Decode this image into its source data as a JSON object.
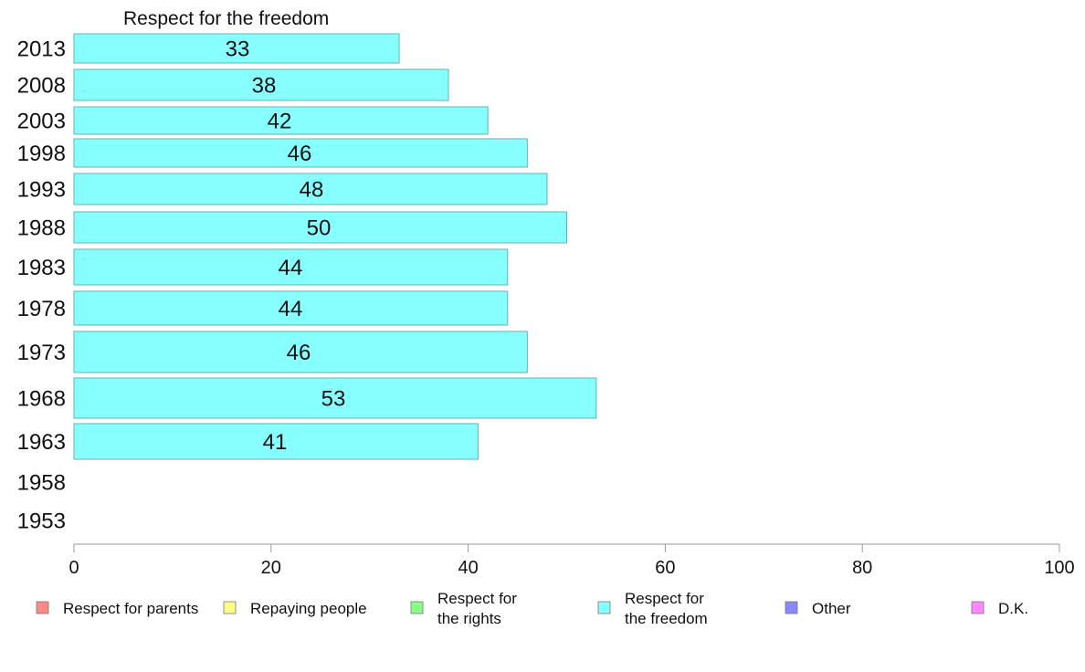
{
  "chart_data": {
    "type": "bar",
    "orientation": "horizontal",
    "title": "Respect for the freedom",
    "categories": [
      "2013",
      "2008",
      "2003",
      "1998",
      "1993",
      "1988",
      "1983",
      "1978",
      "1973",
      "1968",
      "1963",
      "1958",
      "1953"
    ],
    "series": [
      {
        "name": "Respect for the freedom",
        "values": [
          33,
          38,
          42,
          46,
          48,
          50,
          44,
          44,
          46,
          53,
          41,
          null,
          null
        ],
        "labels": [
          "33",
          "38",
          "42",
          "46",
          "48",
          "50",
          "44",
          "44",
          "46",
          "53",
          "41",
          "",
          ""
        ]
      }
    ],
    "xlim": [
      0,
      100
    ],
    "xticks": [
      0,
      20,
      40,
      60,
      80,
      100
    ],
    "xtick_labels": [
      "0",
      "20",
      "40",
      "60",
      "80",
      "100"
    ],
    "grid": false,
    "legend_position": "bottom",
    "legend": [
      {
        "lines": [
          "Respect for parents"
        ],
        "color": "#ff8888"
      },
      {
        "lines": [
          "Repaying people"
        ],
        "color": "#ffff88"
      },
      {
        "lines": [
          "Respect for",
          "the rights"
        ],
        "color": "#88ff88"
      },
      {
        "lines": [
          "Respect for",
          "the freedom"
        ],
        "color": "#88ffff"
      },
      {
        "lines": [
          "Other"
        ],
        "color": "#8888ff"
      },
      {
        "lines": [
          "D.K."
        ],
        "color": "#ff88ff"
      }
    ],
    "bar_color": "#88ffff",
    "bar_edge_color": "#5fb3b3",
    "axis_color": "#999999"
  }
}
